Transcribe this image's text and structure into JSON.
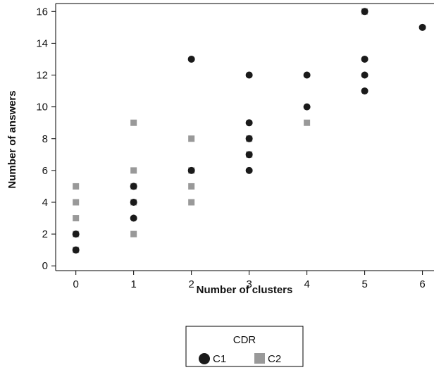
{
  "chart_data": {
    "type": "scatter",
    "xlabel": "Number of clusters",
    "ylabel": "Number of answers",
    "xlim": [
      -0.35,
      6.2
    ],
    "ylim": [
      -0.3,
      16.5
    ],
    "x_ticks": [
      0,
      1,
      2,
      3,
      4,
      5,
      6
    ],
    "y_ticks": [
      0,
      2,
      4,
      6,
      8,
      10,
      12,
      14,
      16
    ],
    "grid": false,
    "legend": {
      "title": "CDR",
      "placement": "bottom-center"
    },
    "series": [
      {
        "name": "C1",
        "marker": "circle",
        "color": "#1a1a1a",
        "points": [
          [
            0,
            1
          ],
          [
            0,
            2
          ],
          [
            1,
            3
          ],
          [
            1,
            4
          ],
          [
            1,
            5
          ],
          [
            2,
            6
          ],
          [
            2,
            13
          ],
          [
            3,
            6
          ],
          [
            3,
            7
          ],
          [
            3,
            8
          ],
          [
            3,
            9
          ],
          [
            3,
            12
          ],
          [
            4,
            10
          ],
          [
            4,
            12
          ],
          [
            5,
            11
          ],
          [
            5,
            12
          ],
          [
            5,
            13
          ],
          [
            5,
            16
          ],
          [
            6,
            15
          ]
        ]
      },
      {
        "name": "C2",
        "marker": "square",
        "color": "#999999",
        "points": [
          [
            0,
            1
          ],
          [
            0,
            2
          ],
          [
            0,
            3
          ],
          [
            0,
            4
          ],
          [
            0,
            5
          ],
          [
            1,
            2
          ],
          [
            1,
            4
          ],
          [
            1,
            5
          ],
          [
            1,
            6
          ],
          [
            1,
            9
          ],
          [
            2,
            4
          ],
          [
            2,
            5
          ],
          [
            2,
            6
          ],
          [
            2,
            8
          ],
          [
            3,
            7
          ],
          [
            3,
            8
          ],
          [
            4,
            9
          ],
          [
            5,
            16
          ]
        ]
      }
    ]
  }
}
